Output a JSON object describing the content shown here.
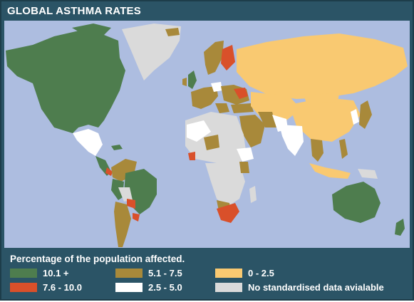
{
  "title": "GLOBAL ASTHMA RATES",
  "legend": {
    "title": "Percentage of the population affected.",
    "items": [
      {
        "label": "10.1 +",
        "color": "#4e7d4e"
      },
      {
        "label": "7.6 - 10.0",
        "color": "#d9502a"
      },
      {
        "label": "5.1 - 7.5",
        "color": "#a8893a"
      },
      {
        "label": "2.5 - 5.0",
        "color": "#ffffff"
      },
      {
        "label": "0 - 2.5",
        "color": "#f9c971"
      },
      {
        "label": "No standardised data avialable",
        "color": "#dadada"
      }
    ]
  },
  "colors": {
    "ocean": "#adbde0",
    "frame": "#2b5466"
  }
}
